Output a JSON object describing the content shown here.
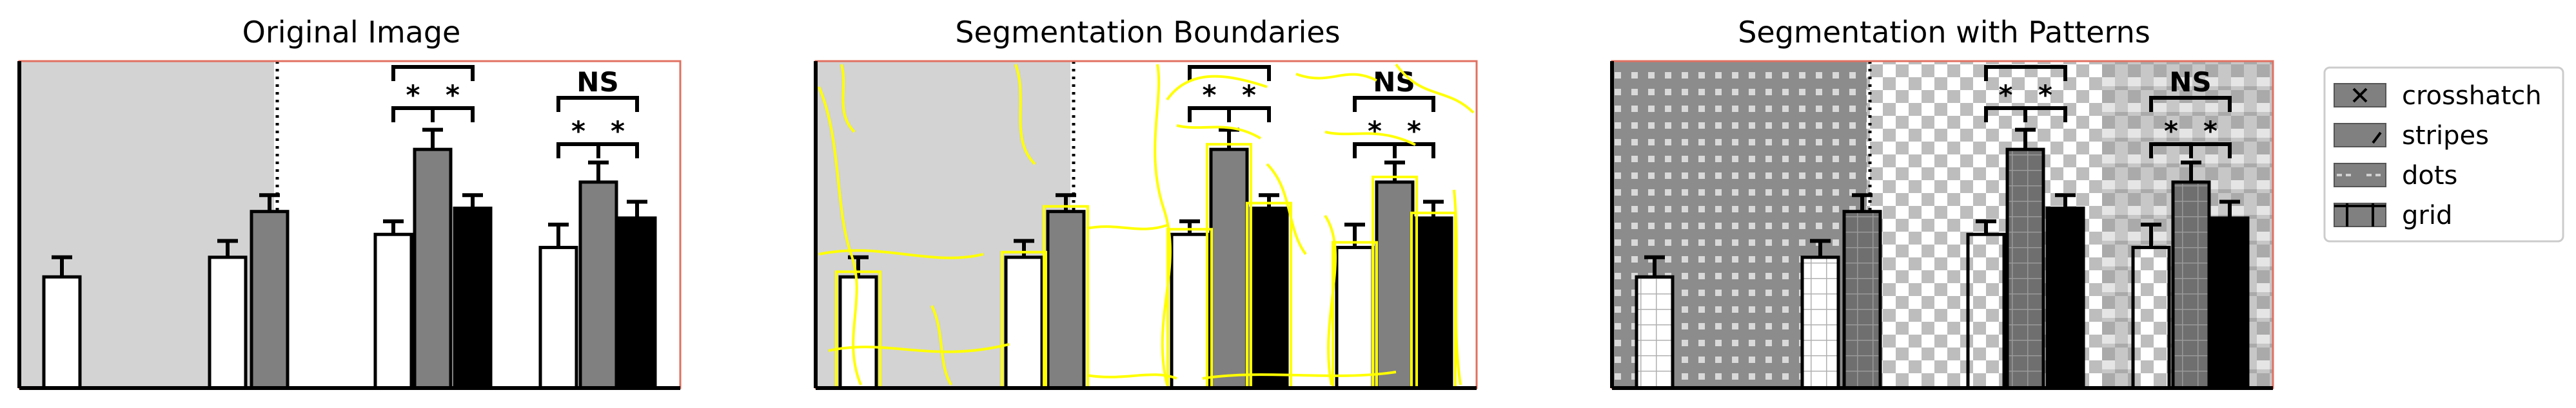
{
  "panels": [
    {
      "title": "Original Image"
    },
    {
      "title": "Segmentation Boundaries"
    },
    {
      "title": "Segmentation with Patterns"
    }
  ],
  "annotations": {
    "star": "*",
    "ns": "NS"
  },
  "legend": {
    "items": [
      {
        "label": "crosshatch",
        "icon": "crosshatch-swatch"
      },
      {
        "label": "stripes",
        "icon": "stripes-swatch"
      },
      {
        "label": "dots",
        "icon": "dots-swatch"
      },
      {
        "label": "grid",
        "icon": "grid-swatch"
      }
    ]
  },
  "colors": {
    "shaded_region": "#d3d3d3",
    "bar_white": "#ffffff",
    "bar_gray": "#808080",
    "bar_black": "#000000",
    "frame": "#e07060",
    "boundary": "#ffff00"
  },
  "bar_chart": {
    "groups": [
      {
        "values": [
          0.34
        ]
      },
      {
        "values": [
          0.4,
          0.54
        ]
      },
      {
        "values": [
          0.47,
          0.73,
          0.55
        ]
      },
      {
        "values": [
          0.43,
          0.63,
          0.52
        ]
      }
    ],
    "error": [
      0.06,
      0.05,
      0.05,
      0.04,
      0.06,
      0.04,
      0.07,
      0.06,
      0.05
    ]
  }
}
